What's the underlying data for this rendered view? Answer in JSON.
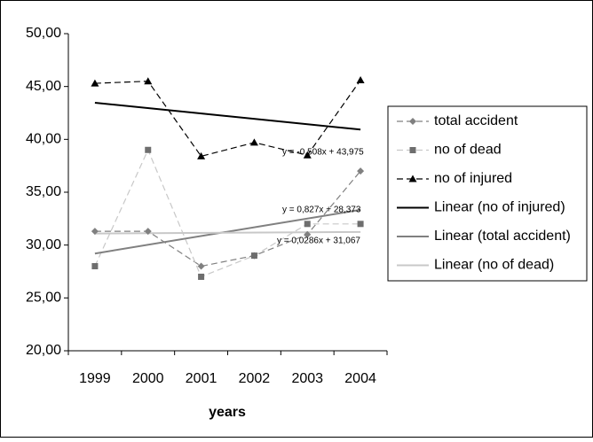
{
  "chart_data": {
    "type": "line",
    "x_label": "years",
    "categories": [
      "1999",
      "2000",
      "2001",
      "2002",
      "2003",
      "2004"
    ],
    "ylim": [
      20,
      50
    ],
    "yticks": [
      {
        "value": 20,
        "label": "20,00"
      },
      {
        "value": 25,
        "label": "25,00"
      },
      {
        "value": 30,
        "label": "30,00"
      },
      {
        "value": 35,
        "label": "35,00"
      },
      {
        "value": 40,
        "label": "40,00"
      },
      {
        "value": 45,
        "label": "45,00"
      },
      {
        "value": 50,
        "label": "50,00"
      }
    ],
    "grid": false,
    "legend": "right",
    "series": [
      {
        "name": "total accident",
        "color": "#808080",
        "marker_color": "#808080",
        "marker": "diamond",
        "values": [
          31.3,
          31.3,
          28.0,
          29.0,
          31.0,
          37.0
        ]
      },
      {
        "name": "no of dead",
        "color": "#c8c8c8",
        "marker_color": "#6e6e6e",
        "marker": "square",
        "values": [
          28,
          39,
          27,
          29,
          32,
          32
        ]
      },
      {
        "name": "no of injured",
        "color": "#000000",
        "marker_color": "#000000",
        "marker": "triangle",
        "values": [
          45.3,
          45.5,
          38.4,
          39.7,
          38.5,
          45.6
        ]
      }
    ],
    "trendlines": [
      {
        "name": "Linear (no of injured)",
        "color": "#000000",
        "slope": -0.508,
        "intercept": 43.975,
        "equation": "y = -0,508x + 43,975"
      },
      {
        "name": "Linear (total accident)",
        "color": "#808080",
        "slope": 0.827,
        "intercept": 28.373,
        "equation": "y = 0,827x + 28,373"
      },
      {
        "name": "Linear (no of dead)",
        "color": "#c8c8c8",
        "slope": 0.0286,
        "intercept": 31.067,
        "equation": "y = 0,0286x + 31,067"
      }
    ]
  }
}
